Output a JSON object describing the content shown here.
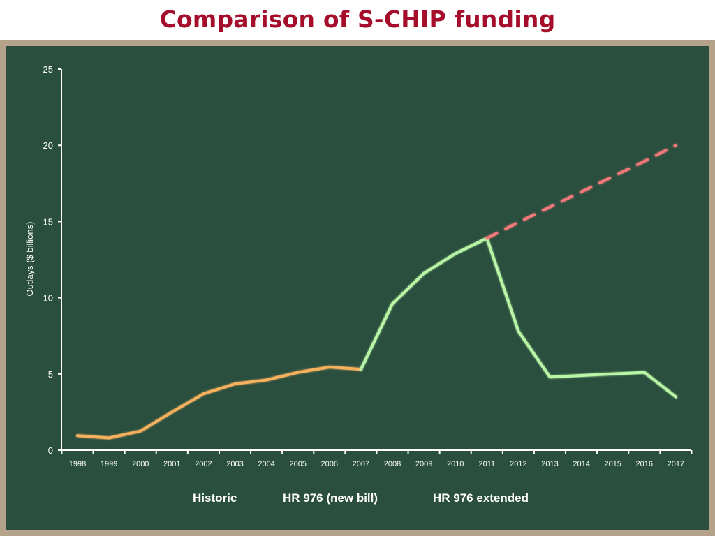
{
  "title": "Comparison of S-CHIP funding",
  "chart_data": {
    "type": "line",
    "title": "Comparison of S-CHIP funding",
    "xlabel": "",
    "ylabel": "Outlays ($ billions)",
    "ylim": [
      0,
      25
    ],
    "yticks": [
      0,
      5,
      10,
      15,
      20,
      25
    ],
    "x": [
      "1998",
      "1999",
      "2000",
      "2001",
      "2002",
      "2003",
      "2004",
      "2005",
      "2006",
      "2007",
      "2008",
      "2009",
      "2010",
      "2011",
      "2012",
      "2013",
      "2014",
      "2015",
      "2016",
      "2017"
    ],
    "grid": false,
    "legend_position": "bottom",
    "series": [
      {
        "name": "Historic",
        "color": "#f5b15d",
        "dash": "solid",
        "points": [
          [
            1998,
            0.95
          ],
          [
            1999,
            0.8
          ],
          [
            2000,
            1.25
          ],
          [
            2001,
            2.5
          ],
          [
            2002,
            3.7
          ],
          [
            2003,
            4.35
          ],
          [
            2004,
            4.6
          ],
          [
            2005,
            5.1
          ],
          [
            2006,
            5.45
          ],
          [
            2007,
            5.3
          ]
        ]
      },
      {
        "name": "HR 976 (new bill)",
        "color": "#b9f7a6",
        "dash": "solid",
        "points": [
          [
            2007,
            5.3
          ],
          [
            2008,
            9.6
          ],
          [
            2009,
            11.6
          ],
          [
            2010,
            12.9
          ],
          [
            2011,
            13.9
          ],
          [
            2012,
            7.8
          ],
          [
            2013,
            4.8
          ],
          [
            2014,
            4.9
          ],
          [
            2015,
            5.0
          ],
          [
            2016,
            5.1
          ],
          [
            2017,
            3.5
          ]
        ]
      },
      {
        "name": "HR 976 extended",
        "color": "#f2787a",
        "dash": "dashed",
        "points": [
          [
            2011,
            13.9
          ],
          [
            2012,
            14.95
          ],
          [
            2013,
            15.95
          ],
          [
            2014,
            16.95
          ],
          [
            2015,
            17.95
          ],
          [
            2016,
            18.95
          ],
          [
            2017,
            20.0
          ]
        ]
      }
    ]
  }
}
